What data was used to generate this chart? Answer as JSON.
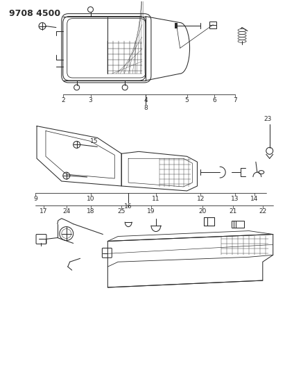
{
  "title": "9708 4500",
  "bg_color": "#ffffff",
  "line_color": "#2a2a2a",
  "title_fontsize": 9,
  "label_fontsize": 6.5,
  "figsize": [
    4.11,
    5.33
  ],
  "dpi": 100,
  "section1_labels": [
    "2",
    "3",
    "4",
    "5",
    "6",
    "7"
  ],
  "section2_labels": [
    "9",
    "10",
    "11",
    "12",
    "13",
    "14"
  ],
  "section3_labels": [
    "17",
    "24",
    "18",
    "25",
    "19",
    "20",
    "21",
    "22"
  ],
  "section1_label8": "8",
  "section2_label15": "15",
  "section2_label16": "16",
  "section_label23": "23"
}
